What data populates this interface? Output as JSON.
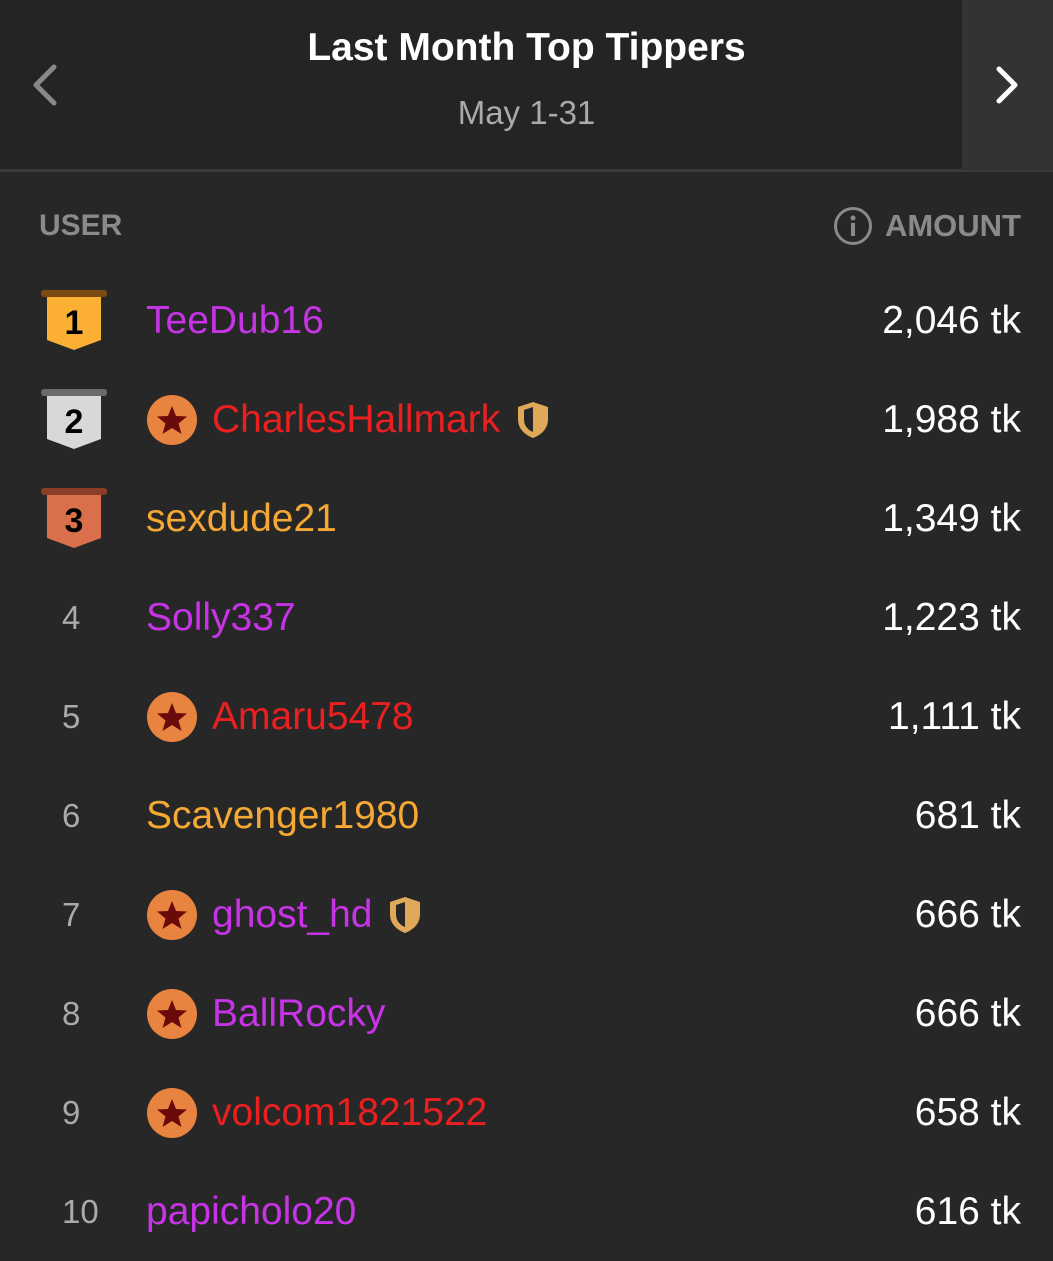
{
  "header": {
    "title": "Last Month Top Tippers",
    "subtitle": "May 1-31"
  },
  "columns": {
    "user": "USER",
    "amount": "AMOUNT"
  },
  "colors": {
    "purple": "#c634e6",
    "red": "#ea2020",
    "orange": "#f5a833",
    "gold": "#fbb034",
    "silver": "#d8d8d8",
    "bronze": "#d9704b"
  },
  "rows": [
    {
      "rank": "1",
      "name": "TeeDub16",
      "color": "purple",
      "star": false,
      "shield": false,
      "amount": "2,046 tk",
      "medal": "gold"
    },
    {
      "rank": "2",
      "name": "CharlesHallmark",
      "color": "red",
      "star": true,
      "shield": true,
      "amount": "1,988 tk",
      "medal": "silver"
    },
    {
      "rank": "3",
      "name": "sexdude21",
      "color": "orange",
      "star": false,
      "shield": false,
      "amount": "1,349 tk",
      "medal": "bronze"
    },
    {
      "rank": "4",
      "name": "Solly337",
      "color": "purple",
      "star": false,
      "shield": false,
      "amount": "1,223 tk"
    },
    {
      "rank": "5",
      "name": "Amaru5478",
      "color": "red",
      "star": true,
      "shield": false,
      "amount": "1,111 tk"
    },
    {
      "rank": "6",
      "name": "Scavenger1980",
      "color": "orange",
      "star": false,
      "shield": false,
      "amount": "681 tk"
    },
    {
      "rank": "7",
      "name": "ghost_hd",
      "color": "purple",
      "star": true,
      "shield": true,
      "amount": "666 tk"
    },
    {
      "rank": "8",
      "name": "BallRocky",
      "color": "purple",
      "star": true,
      "shield": false,
      "amount": "666 tk"
    },
    {
      "rank": "9",
      "name": "volcom1821522",
      "color": "red",
      "star": true,
      "shield": false,
      "amount": "658 tk"
    },
    {
      "rank": "10",
      "name": "papicholo20",
      "color": "purple",
      "star": false,
      "shield": false,
      "amount": "616 tk"
    }
  ]
}
